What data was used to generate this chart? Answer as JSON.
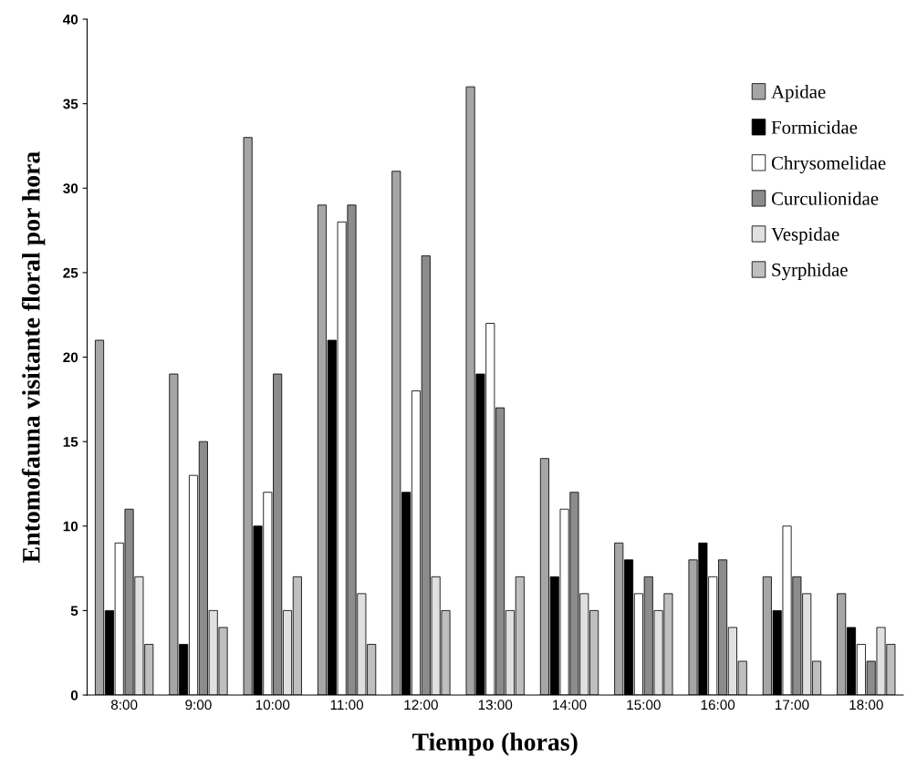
{
  "chart_data": {
    "type": "bar",
    "xlabel": "Tiempo (horas)",
    "ylabel": "Entomofauna visitante floral por hora",
    "categories": [
      "8:00",
      "9:00",
      "10:00",
      "11:00",
      "12:00",
      "13:00",
      "14:00",
      "15:00",
      "16:00",
      "17:00",
      "18:00"
    ],
    "series": [
      {
        "name": "Apidae",
        "color": "#a6a6a6",
        "values": [
          21,
          19,
          33,
          29,
          31,
          36,
          14,
          9,
          8,
          7,
          6
        ]
      },
      {
        "name": "Formicidae",
        "color": "#000000",
        "values": [
          5,
          3,
          10,
          21,
          12,
          19,
          7,
          8,
          9,
          5,
          4
        ]
      },
      {
        "name": "Chrysomelidae",
        "color": "#ffffff",
        "values": [
          9,
          13,
          12,
          28,
          18,
          22,
          11,
          6,
          7,
          10,
          3
        ]
      },
      {
        "name": "Curculionidae",
        "color": "#8c8c8c",
        "values": [
          11,
          15,
          19,
          29,
          26,
          17,
          12,
          7,
          8,
          7,
          2
        ]
      },
      {
        "name": "Vespidae",
        "color": "#e0e0e0",
        "values": [
          7,
          5,
          5,
          6,
          7,
          5,
          6,
          5,
          4,
          6,
          4
        ]
      },
      {
        "name": "Syrphidae",
        "color": "#bfbfbf",
        "values": [
          3,
          4,
          7,
          3,
          5,
          7,
          5,
          6,
          2,
          2,
          3
        ]
      }
    ],
    "ylim": [
      0,
      40
    ],
    "yticks": [
      0,
      5,
      10,
      15,
      20,
      25,
      30,
      35,
      40
    ],
    "grid": false,
    "legend": "top right"
  }
}
